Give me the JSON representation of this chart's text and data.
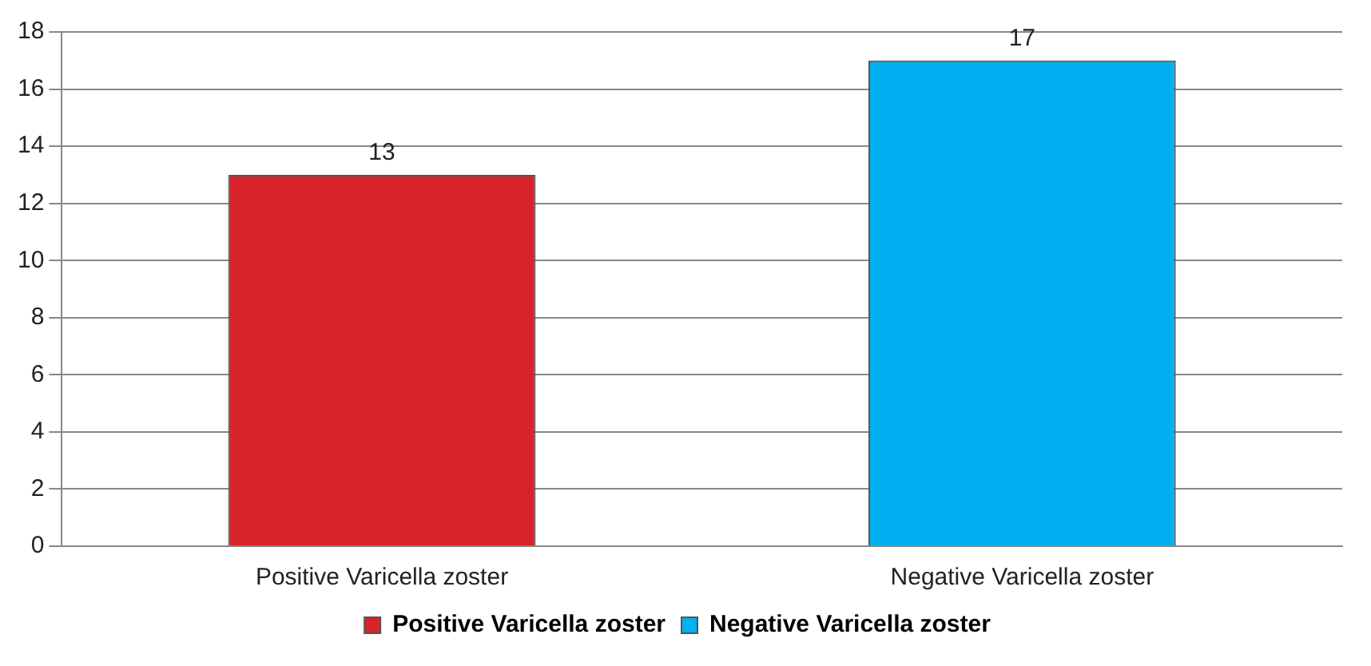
{
  "chart_data": {
    "type": "bar",
    "categories": [
      "Positive Varicella zoster",
      "Negative Varicella zoster"
    ],
    "series": [
      {
        "name": "Positive Varicella zoster",
        "color": "#d9232a",
        "values": [
          13,
          null
        ]
      },
      {
        "name": "Negative Varicella zoster",
        "color": "#00b0f0",
        "values": [
          null,
          17
        ]
      }
    ],
    "ylim": [
      0,
      18
    ],
    "yticks": [
      0,
      2,
      4,
      6,
      8,
      10,
      12,
      14,
      16,
      18
    ],
    "grid": "y",
    "legend": "bottom",
    "data_labels": true
  }
}
